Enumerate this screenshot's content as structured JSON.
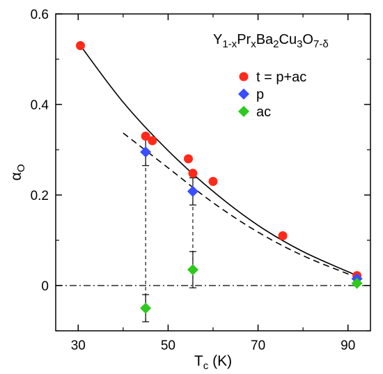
{
  "chart_data": {
    "type": "scatter",
    "title": "",
    "formula": {
      "parts": [
        {
          "t": "Y",
          "sub": false
        },
        {
          "t": "1-x",
          "sub": true
        },
        {
          "t": "Pr",
          "sub": false
        },
        {
          "t": "x",
          "sub": true
        },
        {
          "t": "Ba",
          "sub": false
        },
        {
          "t": "2",
          "sub": true
        },
        {
          "t": "Cu",
          "sub": false
        },
        {
          "t": "3",
          "sub": true
        },
        {
          "t": "O",
          "sub": false
        },
        {
          "t": "7-δ",
          "sub": true
        }
      ]
    },
    "xlabel": {
      "main": "T",
      "sub": "c",
      "unit": " (K)"
    },
    "ylabel": {
      "main": "α",
      "sub": "O"
    },
    "xlim": [
      25,
      95
    ],
    "ylim": [
      -0.1,
      0.6
    ],
    "xticks": [
      30,
      50,
      70,
      90
    ],
    "yticks": [
      0,
      0.2,
      0.4,
      0.6
    ],
    "grid": false,
    "legend_position": "top-right",
    "series": [
      {
        "name": "t = p+ac",
        "marker": "circle",
        "color": "#ff2a1a",
        "points": [
          [
            30.5,
            0.53
          ],
          [
            45,
            0.33
          ],
          [
            46.5,
            0.32
          ],
          [
            54.5,
            0.28
          ],
          [
            55.5,
            0.248
          ],
          [
            60,
            0.23
          ],
          [
            75.5,
            0.11
          ],
          [
            92,
            0.022
          ]
        ]
      },
      {
        "name": "p",
        "marker": "diamond",
        "color": "#3a4dff",
        "points": [
          [
            45,
            0.295
          ],
          [
            55.5,
            0.208
          ],
          [
            92,
            0.015
          ]
        ],
        "errors": [
          0.03,
          0.03,
          0
        ]
      },
      {
        "name": "ac",
        "marker": "diamond",
        "color": "#2ec91e",
        "points": [
          [
            45,
            -0.05
          ],
          [
            55.5,
            0.035
          ],
          [
            92,
            0.005
          ]
        ],
        "errors": [
          0.03,
          0.04,
          0
        ]
      }
    ],
    "fit_curves": [
      {
        "style": "solid",
        "x_range": [
          30.5,
          92
        ],
        "points": [
          [
            30.5,
            0.53
          ],
          [
            40,
            0.405
          ],
          [
            50,
            0.298
          ],
          [
            60,
            0.208
          ],
          [
            70,
            0.133
          ],
          [
            80,
            0.075
          ],
          [
            92,
            0.022
          ]
        ]
      },
      {
        "style": "dashed",
        "x_range": [
          40,
          92
        ],
        "points": [
          [
            40,
            0.337
          ],
          [
            50,
            0.26
          ],
          [
            60,
            0.183
          ],
          [
            70,
            0.118
          ],
          [
            80,
            0.066
          ],
          [
            92,
            0.018
          ]
        ]
      }
    ],
    "reference_lines": [
      {
        "style": "dash-dot",
        "y": 0
      },
      {
        "style": "dashed",
        "x": 45,
        "y_range": [
          -0.08,
          0.295
        ]
      },
      {
        "style": "dashed",
        "x": 55.5,
        "y_range": [
          0.0,
          0.208
        ]
      }
    ]
  },
  "colors": {
    "axes": "#000000",
    "background": "#ffffff"
  }
}
